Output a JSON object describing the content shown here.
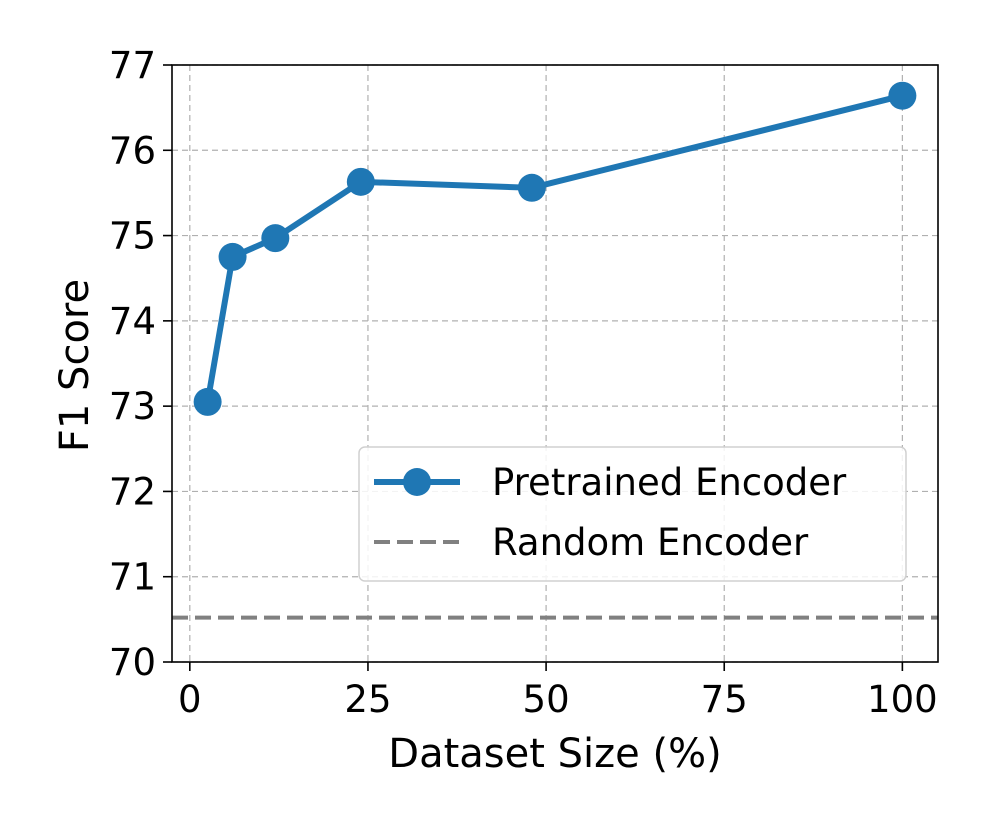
{
  "chart_data": {
    "type": "line",
    "xlabel": "Dataset Size (%)",
    "ylabel": "F1 Score",
    "xlim": [
      -2.5,
      105
    ],
    "ylim": [
      70,
      77
    ],
    "xticks": [
      0,
      25,
      50,
      75,
      100
    ],
    "yticks": [
      70,
      71,
      72,
      73,
      74,
      75,
      76,
      77
    ],
    "grid": true,
    "legend_position": "lower-right",
    "series": [
      {
        "name": "Pretrained Encoder",
        "color": "#1f77b4",
        "style": "solid",
        "marker": "circle",
        "x": [
          2.5,
          6,
          12,
          24,
          48,
          100
        ],
        "y": [
          73.05,
          74.75,
          74.97,
          75.63,
          75.56,
          76.64
        ]
      },
      {
        "name": "Random Encoder",
        "color": "#808080",
        "style": "dashed",
        "marker": "none",
        "constant_y": 70.52
      }
    ]
  }
}
